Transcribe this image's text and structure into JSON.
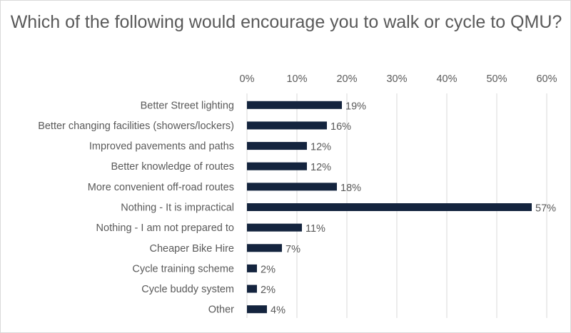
{
  "chart_data": {
    "type": "bar",
    "orientation": "horizontal",
    "title": "Which of the following would encourage you to walk or cycle to QMU?",
    "categories": [
      "Better Street lighting",
      "Better changing facilities (showers/lockers)",
      "Improved pavements and paths",
      "Better knowledge of routes",
      "More convenient off-road routes",
      "Nothing - It is impractical",
      "Nothing - I am not prepared to",
      "Cheaper Bike Hire",
      "Cycle training scheme",
      "Cycle buddy system",
      "Other"
    ],
    "values": [
      19,
      16,
      12,
      12,
      18,
      57,
      11,
      7,
      2,
      2,
      4
    ],
    "data_labels": [
      "19%",
      "16%",
      "12%",
      "12%",
      "18%",
      "57%",
      "11%",
      "7%",
      "2%",
      "2%",
      "4%"
    ],
    "xlim": [
      0,
      60
    ],
    "x_ticks": [
      "0%",
      "10%",
      "20%",
      "30%",
      "40%",
      "50%",
      "60%"
    ],
    "x_axis_position": "top",
    "grid": true,
    "bar_color": "#14243e",
    "grid_color": "#d9d9d9"
  }
}
